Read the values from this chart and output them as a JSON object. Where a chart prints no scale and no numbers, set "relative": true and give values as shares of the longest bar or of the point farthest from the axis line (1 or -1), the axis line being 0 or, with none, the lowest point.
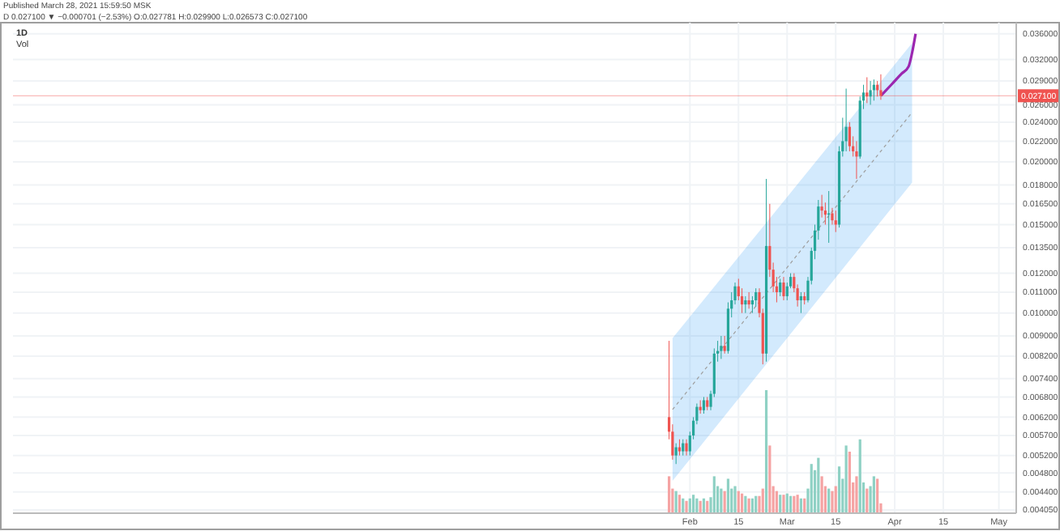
{
  "chart_data": [
    {
      "type": "candlestick",
      "title": "1D",
      "annotations": [
        "Published March 28, 2021 15:59:50 MSK",
        "D 0.027100 ▼ −0.000701 (−2.53%) O:0.027781 H:0.029900 L:0.026573 C:0.027100"
      ],
      "x": [
        "2021-01-26",
        "2021-01-27",
        "2021-01-28",
        "2021-01-29",
        "2021-01-30",
        "2021-01-31",
        "2021-02-01",
        "2021-02-02",
        "2021-02-03",
        "2021-02-04",
        "2021-02-05",
        "2021-02-06",
        "2021-02-07",
        "2021-02-08",
        "2021-02-09",
        "2021-02-10",
        "2021-02-11",
        "2021-02-12",
        "2021-02-13",
        "2021-02-14",
        "2021-02-15",
        "2021-02-16",
        "2021-02-17",
        "2021-02-18",
        "2021-02-19",
        "2021-02-20",
        "2021-02-21",
        "2021-02-22",
        "2021-02-23",
        "2021-02-24",
        "2021-02-25",
        "2021-02-26",
        "2021-02-27",
        "2021-02-28",
        "2021-03-01",
        "2021-03-02",
        "2021-03-03",
        "2021-03-04",
        "2021-03-05",
        "2021-03-06",
        "2021-03-07",
        "2021-03-08",
        "2021-03-09",
        "2021-03-10",
        "2021-03-11",
        "2021-03-12",
        "2021-03-13",
        "2021-03-14",
        "2021-03-15",
        "2021-03-16",
        "2021-03-17",
        "2021-03-18",
        "2021-03-19",
        "2021-03-20",
        "2021-03-21",
        "2021-03-22",
        "2021-03-23",
        "2021-03-24",
        "2021-03-25",
        "2021-03-26",
        "2021-03-27",
        "2021-03-28"
      ],
      "ohlc": [
        [
          0.0062,
          0.0088,
          0.0056,
          0.0058
        ],
        [
          0.0058,
          0.006,
          0.0051,
          0.0052
        ],
        [
          0.0052,
          0.0055,
          0.005,
          0.0054
        ],
        [
          0.0054,
          0.0056,
          0.0052,
          0.0053
        ],
        [
          0.0053,
          0.0056,
          0.0052,
          0.0055
        ],
        [
          0.0055,
          0.0056,
          0.0052,
          0.0053
        ],
        [
          0.0053,
          0.0058,
          0.0052,
          0.0057
        ],
        [
          0.0057,
          0.0062,
          0.0056,
          0.0061
        ],
        [
          0.0061,
          0.0066,
          0.006,
          0.0065
        ],
        [
          0.0065,
          0.0067,
          0.0063,
          0.0064
        ],
        [
          0.0064,
          0.0068,
          0.0063,
          0.0067
        ],
        [
          0.0067,
          0.0068,
          0.0064,
          0.0065
        ],
        [
          0.0065,
          0.007,
          0.0064,
          0.0069
        ],
        [
          0.0069,
          0.0085,
          0.0068,
          0.0083
        ],
        [
          0.0083,
          0.0088,
          0.008,
          0.0084
        ],
        [
          0.0084,
          0.009,
          0.0081,
          0.0086
        ],
        [
          0.0086,
          0.009,
          0.0083,
          0.0084
        ],
        [
          0.0084,
          0.0105,
          0.0083,
          0.0102
        ],
        [
          0.0102,
          0.011,
          0.0098,
          0.0106
        ],
        [
          0.0106,
          0.0115,
          0.0104,
          0.0113
        ],
        [
          0.0113,
          0.0117,
          0.0106,
          0.0108
        ],
        [
          0.0108,
          0.0112,
          0.01,
          0.0104
        ],
        [
          0.0104,
          0.0108,
          0.01,
          0.0106
        ],
        [
          0.0106,
          0.011,
          0.0102,
          0.0104
        ],
        [
          0.0104,
          0.0108,
          0.01,
          0.0106
        ],
        [
          0.0106,
          0.0112,
          0.0103,
          0.011
        ],
        [
          0.011,
          0.0112,
          0.0098,
          0.01
        ],
        [
          0.01,
          0.0102,
          0.0079,
          0.0083
        ],
        [
          0.0083,
          0.0185,
          0.008,
          0.0136
        ],
        [
          0.0136,
          0.0165,
          0.0118,
          0.0122
        ],
        [
          0.0122,
          0.0126,
          0.011,
          0.0113
        ],
        [
          0.0113,
          0.0118,
          0.0105,
          0.011
        ],
        [
          0.011,
          0.0117,
          0.0108,
          0.0115
        ],
        [
          0.0115,
          0.0118,
          0.0106,
          0.0108
        ],
        [
          0.0108,
          0.0115,
          0.0106,
          0.0113
        ],
        [
          0.0113,
          0.012,
          0.0112,
          0.0118
        ],
        [
          0.0118,
          0.012,
          0.011,
          0.0112
        ],
        [
          0.0112,
          0.0114,
          0.0103,
          0.0106
        ],
        [
          0.0106,
          0.011,
          0.01,
          0.0108
        ],
        [
          0.0108,
          0.011,
          0.0104,
          0.0106
        ],
        [
          0.0106,
          0.0118,
          0.0105,
          0.0116
        ],
        [
          0.0116,
          0.0135,
          0.0114,
          0.0133
        ],
        [
          0.0133,
          0.015,
          0.0128,
          0.0146
        ],
        [
          0.0146,
          0.0168,
          0.014,
          0.0163
        ],
        [
          0.0163,
          0.0172,
          0.0155,
          0.016
        ],
        [
          0.016,
          0.0166,
          0.015,
          0.0157
        ],
        [
          0.0157,
          0.0175,
          0.0138,
          0.0158
        ],
        [
          0.0158,
          0.0162,
          0.015,
          0.0153
        ],
        [
          0.0153,
          0.016,
          0.0145,
          0.015
        ],
        [
          0.015,
          0.0215,
          0.0148,
          0.021
        ],
        [
          0.021,
          0.0245,
          0.0205,
          0.022
        ],
        [
          0.022,
          0.028,
          0.021,
          0.0235
        ],
        [
          0.0235,
          0.024,
          0.021,
          0.0215
        ],
        [
          0.0215,
          0.0225,
          0.0205,
          0.021
        ],
        [
          0.021,
          0.022,
          0.0185,
          0.0205
        ],
        [
          0.0205,
          0.027,
          0.0203,
          0.0265
        ],
        [
          0.0265,
          0.0285,
          0.0255,
          0.0275
        ],
        [
          0.0275,
          0.0295,
          0.0262,
          0.027
        ],
        [
          0.027,
          0.029,
          0.026,
          0.0278
        ],
        [
          0.0278,
          0.0292,
          0.0265,
          0.0285
        ],
        [
          0.0285,
          0.029,
          0.027,
          0.0278
        ],
        [
          0.0278,
          0.0299,
          0.0266,
          0.0271
        ]
      ],
      "series": [
        {
          "type": "line",
          "color": "#9e9e9e",
          "line_style": "dashed",
          "x": [
            "2021-01-27",
            "2021-04-06"
          ],
          "values": [
            0.00642,
            0.0251
          ],
          "lower": [
            0.00463,
            0.0182
          ],
          "upper": [
            0.00891,
            0.0345
          ]
        },
        {
          "type": "line",
          "color": "#9c27b0",
          "x": [
            "2021-03-28",
            "2021-03-31",
            "2021-04-03",
            "2021-04-05",
            "2021-04-06",
            "2021-04-07"
          ],
          "values": [
            0.0271,
            0.0285,
            0.03,
            0.031,
            0.033,
            0.036
          ]
        }
      ],
      "ref_lines": [
        {
          "axis": "y",
          "value": 0.0271,
          "label": "0.027100",
          "color": "#ef5350"
        }
      ],
      "log": true,
      "grid": true,
      "xlim": [
        "2020-07-21",
        "2021-05-06"
      ],
      "xticks": [
        {
          "value": "2021-02-01",
          "label": "Feb"
        },
        {
          "value": "2021-02-15",
          "label": "15"
        },
        {
          "value": "2021-03-01",
          "label": "Mar"
        },
        {
          "value": "2021-03-15",
          "label": "15"
        },
        {
          "value": "2021-04-01",
          "label": "Apr"
        },
        {
          "value": "2021-04-15",
          "label": "15"
        },
        {
          "value": "2021-05-01",
          "label": "May"
        }
      ],
      "ylim": [
        0.00399,
        0.0379
      ],
      "yticks": [
        {
          "value": 0.036,
          "label": "0.036000"
        },
        {
          "value": 0.032,
          "label": "0.032000"
        },
        {
          "value": 0.029,
          "label": "0.029000"
        },
        {
          "value": 0.026,
          "label": "0.026000"
        },
        {
          "value": 0.024,
          "label": "0.024000"
        },
        {
          "value": 0.022,
          "label": "0.022000"
        },
        {
          "value": 0.02,
          "label": "0.020000"
        },
        {
          "value": 0.018,
          "label": "0.018000"
        },
        {
          "value": 0.0165,
          "label": "0.016500"
        },
        {
          "value": 0.015,
          "label": "0.015000"
        },
        {
          "value": 0.0135,
          "label": "0.013500"
        },
        {
          "value": 0.012,
          "label": "0.012000"
        },
        {
          "value": 0.011,
          "label": "0.011000"
        },
        {
          "value": 0.01,
          "label": "0.010000"
        },
        {
          "value": 0.009,
          "label": "0.009000"
        },
        {
          "value": 0.0082,
          "label": "0.008200"
        },
        {
          "value": 0.0074,
          "label": "0.007400"
        },
        {
          "value": 0.0068,
          "label": "0.006800"
        },
        {
          "value": 0.0062,
          "label": "0.006200"
        },
        {
          "value": 0.0057,
          "label": "0.005700"
        },
        {
          "value": 0.0052,
          "label": "0.005200"
        },
        {
          "value": 0.0048,
          "label": "0.004800"
        },
        {
          "value": 0.0044,
          "label": "0.004400"
        },
        {
          "value": 0.00405,
          "label": "0.004050"
        }
      ]
    },
    {
      "type": "bar",
      "title": "Vol",
      "relative": true,
      "x": [
        "2021-01-26",
        "2021-01-27",
        "2021-01-28",
        "2021-01-29",
        "2021-01-30",
        "2021-01-31",
        "2021-02-01",
        "2021-02-02",
        "2021-02-03",
        "2021-02-04",
        "2021-02-05",
        "2021-02-06",
        "2021-02-07",
        "2021-02-08",
        "2021-02-09",
        "2021-02-10",
        "2021-02-11",
        "2021-02-12",
        "2021-02-13",
        "2021-02-14",
        "2021-02-15",
        "2021-02-16",
        "2021-02-17",
        "2021-02-18",
        "2021-02-19",
        "2021-02-20",
        "2021-02-21",
        "2021-02-22",
        "2021-02-23",
        "2021-02-24",
        "2021-02-25",
        "2021-02-26",
        "2021-02-27",
        "2021-02-28",
        "2021-03-01",
        "2021-03-02",
        "2021-03-03",
        "2021-03-04",
        "2021-03-05",
        "2021-03-06",
        "2021-03-07",
        "2021-03-08",
        "2021-03-09",
        "2021-03-10",
        "2021-03-11",
        "2021-03-12",
        "2021-03-13",
        "2021-03-14",
        "2021-03-15",
        "2021-03-16",
        "2021-03-17",
        "2021-03-18",
        "2021-03-19",
        "2021-03-20",
        "2021-03-21",
        "2021-03-22",
        "2021-03-23",
        "2021-03-24",
        "2021-03-25",
        "2021-03-26",
        "2021-03-27",
        "2021-03-28"
      ],
      "xlim": [
        "2020-07-21",
        "2021-05-06"
      ],
      "values": [
        0.3,
        0.2,
        0.18,
        0.15,
        0.12,
        0.1,
        0.12,
        0.15,
        0.12,
        0.1,
        0.12,
        0.1,
        0.13,
        0.3,
        0.22,
        0.2,
        0.18,
        0.28,
        0.2,
        0.22,
        0.18,
        0.16,
        0.14,
        0.12,
        0.12,
        0.14,
        0.14,
        0.2,
        1.0,
        0.55,
        0.22,
        0.18,
        0.15,
        0.15,
        0.16,
        0.14,
        0.14,
        0.15,
        0.12,
        0.12,
        0.2,
        0.4,
        0.35,
        0.45,
        0.3,
        0.22,
        0.2,
        0.18,
        0.22,
        0.38,
        0.28,
        0.55,
        0.5,
        0.25,
        0.3,
        0.6,
        0.25,
        0.2,
        0.22,
        0.3,
        0.28,
        0.08
      ],
      "colors": [
        "#f5a3a3",
        "#f5a3a3",
        "#8fd1c4",
        "#f5a3a3",
        "#8fd1c4",
        "#f5a3a3",
        "#8fd1c4",
        "#8fd1c4",
        "#8fd1c4",
        "#f5a3a3",
        "#8fd1c4",
        "#f5a3a3",
        "#8fd1c4",
        "#8fd1c4",
        "#8fd1c4",
        "#8fd1c4",
        "#f5a3a3",
        "#8fd1c4",
        "#8fd1c4",
        "#8fd1c4",
        "#f5a3a3",
        "#f5a3a3",
        "#8fd1c4",
        "#f5a3a3",
        "#8fd1c4",
        "#8fd1c4",
        "#f5a3a3",
        "#f5a3a3",
        "#8fd1c4",
        "#f5a3a3",
        "#f5a3a3",
        "#f5a3a3",
        "#8fd1c4",
        "#f5a3a3",
        "#8fd1c4",
        "#8fd1c4",
        "#f5a3a3",
        "#f5a3a3",
        "#8fd1c4",
        "#f5a3a3",
        "#8fd1c4",
        "#8fd1c4",
        "#8fd1c4",
        "#8fd1c4",
        "#f5a3a3",
        "#f5a3a3",
        "#8fd1c4",
        "#f5a3a3",
        "#f5a3a3",
        "#8fd1c4",
        "#8fd1c4",
        "#8fd1c4",
        "#f5a3a3",
        "#f5a3a3",
        "#f5a3a3",
        "#8fd1c4",
        "#8fd1c4",
        "#f5a3a3",
        "#8fd1c4",
        "#8fd1c4",
        "#f5a3a3",
        "#f5a3a3"
      ]
    }
  ]
}
